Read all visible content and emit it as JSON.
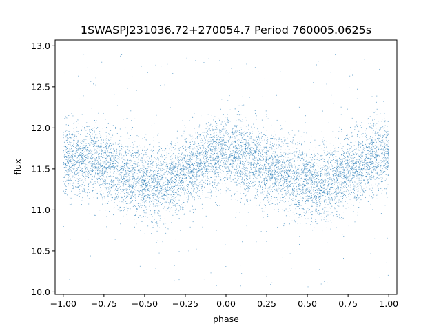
{
  "chart_data": {
    "type": "scatter",
    "title": "1SWASPJ231036.72+270054.7 Period 760005.0625s",
    "xlabel": "phase",
    "ylabel": "flux",
    "xlim": [
      -1.05,
      1.05
    ],
    "ylim": [
      9.97,
      13.07
    ],
    "xticks": [
      -1.0,
      -0.75,
      -0.5,
      -0.25,
      0.0,
      0.25,
      0.5,
      0.75,
      1.0
    ],
    "xtick_labels": [
      "−1.00",
      "−0.75",
      "−0.50",
      "−0.25",
      "0.00",
      "0.25",
      "0.50",
      "0.75",
      "1.00"
    ],
    "yticks": [
      10.0,
      10.5,
      11.0,
      11.5,
      12.0,
      12.5,
      13.0
    ],
    "ytick_labels": [
      "10.0",
      "10.5",
      "11.0",
      "11.5",
      "12.0",
      "12.5",
      "13.0"
    ],
    "grid": false,
    "legend": "none",
    "marker_color": "#1f77b4",
    "series": [
      {
        "curve_x": [
          -1.0,
          -0.9,
          -0.8,
          -0.7,
          -0.6,
          -0.5,
          -0.45,
          -0.4,
          -0.3,
          -0.2,
          -0.1,
          0.0,
          0.1,
          0.2,
          0.3,
          0.4,
          0.5,
          0.55,
          0.6,
          0.7,
          0.8,
          0.9,
          1.0
        ],
        "curve_y": [
          11.6,
          11.62,
          11.58,
          11.5,
          11.42,
          11.35,
          11.3,
          11.32,
          11.4,
          11.55,
          11.65,
          11.7,
          11.62,
          11.58,
          11.5,
          11.42,
          11.35,
          11.3,
          11.32,
          11.4,
          11.55,
          11.65,
          11.7
        ],
        "scatter_sigma": 0.22,
        "n_points": 9000
      }
    ]
  }
}
